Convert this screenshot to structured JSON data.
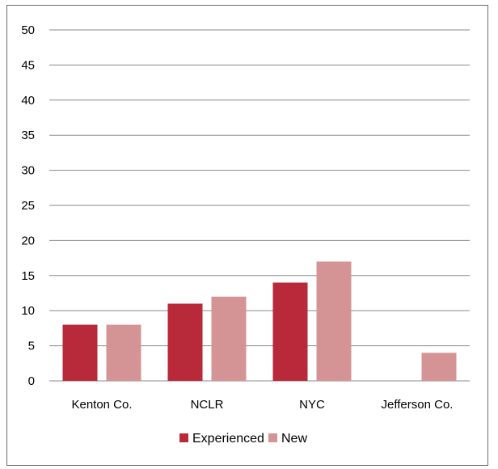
{
  "chart_data": {
    "type": "bar",
    "categories": [
      "Kenton Co.",
      "NCLR",
      "NYC",
      "Jefferson Co."
    ],
    "series": [
      {
        "name": "Experienced",
        "values": [
          8,
          11,
          14,
          0
        ],
        "color": "#b8293a"
      },
      {
        "name": "New",
        "values": [
          8,
          12,
          17,
          4
        ],
        "color": "#d49496"
      }
    ],
    "ylim": [
      0,
      50
    ],
    "yticks": [
      0,
      5,
      10,
      15,
      20,
      25,
      30,
      35,
      40,
      45,
      50
    ],
    "grid": true,
    "legend_position": "bottom"
  }
}
